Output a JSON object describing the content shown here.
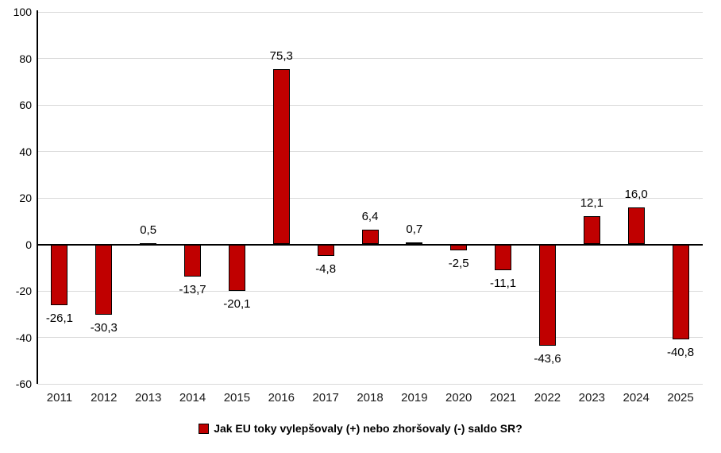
{
  "chart_data": {
    "type": "bar",
    "title": "",
    "categories": [
      "2011",
      "2012",
      "2013",
      "2014",
      "2015",
      "2016",
      "2017",
      "2018",
      "2019",
      "2020",
      "2021",
      "2022",
      "2023",
      "2024",
      "2025"
    ],
    "values": [
      -26.1,
      -30.3,
      0.5,
      -13.7,
      -20.1,
      75.3,
      -4.8,
      6.4,
      0.7,
      -2.5,
      -11.1,
      -43.6,
      12.1,
      16.0,
      -40.8
    ],
    "value_labels": [
      "-26,1",
      "-30,3",
      "0,5",
      "-13,7",
      "-20,1",
      "75,3",
      "-4,8",
      "6,4",
      "0,7",
      "-2,5",
      "-11,1",
      "-43,6",
      "12,1",
      "16,0",
      "-40,8"
    ],
    "series_name": "Jak EU toky vylepšovaly (+) nebo zhoršovaly (-) saldo SR?",
    "xlabel": "",
    "ylabel": "",
    "ylim": [
      -60,
      100
    ],
    "y_ticks": [
      100,
      80,
      60,
      40,
      20,
      0,
      -20,
      -40,
      -60
    ],
    "grid": "horizontal",
    "legend_position": "bottom",
    "bar_color": "#c00000",
    "bar_border_color": "#000000",
    "grid_color": "#d9d9d9",
    "axis_color": "#000000",
    "background_color": "#ffffff"
  }
}
